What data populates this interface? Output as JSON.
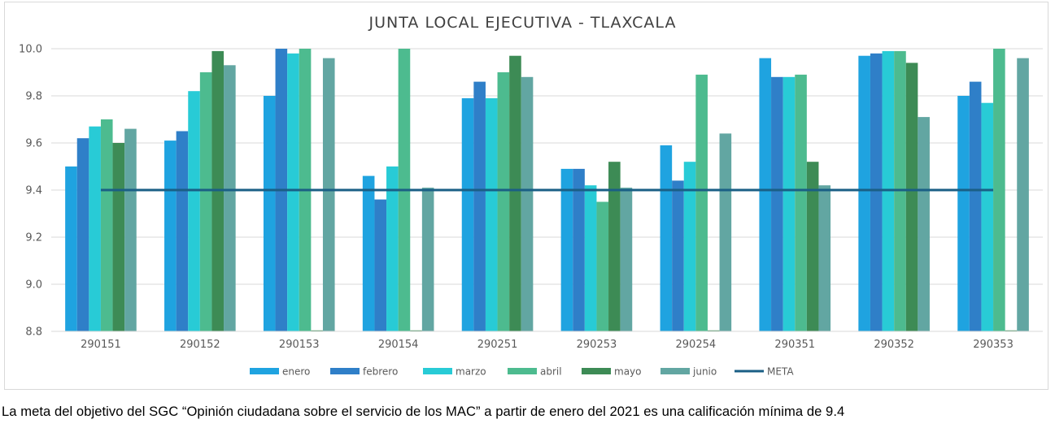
{
  "chart_data": {
    "type": "bar",
    "title": "JUNTA LOCAL EJECUTIVA - TLAXCALA",
    "categories": [
      "290151",
      "290152",
      "290153",
      "290154",
      "290251",
      "290253",
      "290254",
      "290351",
      "290352",
      "290353"
    ],
    "series": [
      {
        "name": "enero",
        "color": "#1fa3e0",
        "values": [
          9.5,
          9.61,
          9.8,
          9.46,
          9.79,
          9.49,
          9.59,
          9.96,
          9.97,
          9.8
        ]
      },
      {
        "name": "febrero",
        "color": "#2f7fc8",
        "values": [
          9.62,
          9.65,
          10.0,
          9.36,
          9.86,
          9.49,
          9.44,
          9.88,
          9.98,
          9.86
        ]
      },
      {
        "name": "marzo",
        "color": "#28cbd6",
        "values": [
          9.67,
          9.82,
          9.98,
          9.5,
          9.79,
          9.42,
          9.52,
          9.88,
          9.99,
          9.77
        ]
      },
      {
        "name": "abril",
        "color": "#4dbb8f",
        "values": [
          9.7,
          9.9,
          10.0,
          10.0,
          9.9,
          9.35,
          9.89,
          9.89,
          9.99,
          10.0
        ]
      },
      {
        "name": "mayo",
        "color": "#3d8b55",
        "values": [
          9.6,
          9.99,
          8.8,
          8.8,
          9.97,
          9.52,
          8.8,
          9.52,
          9.94,
          8.8
        ]
      },
      {
        "name": "junio",
        "color": "#62a6a2",
        "values": [
          9.66,
          9.93,
          9.96,
          9.41,
          9.88,
          9.41,
          9.64,
          9.42,
          9.71,
          9.96
        ]
      }
    ],
    "meta": {
      "name": "META",
      "value": 9.4,
      "color": "#1a5f85"
    },
    "ylim": [
      8.8,
      10.0
    ],
    "yticks": [
      "8.8",
      "9.0",
      "9.2",
      "9.4",
      "9.6",
      "9.8",
      "10.0"
    ],
    "ytick_values": [
      8.8,
      9.0,
      9.2,
      9.4,
      9.6,
      9.8,
      10.0
    ],
    "grid": true,
    "legend_position": "bottom"
  },
  "caption": "La meta del objetivo del SGC “Opinión ciudadana sobre el servicio de los MAC” a partir de enero del 2021 es una calificación mínima de 9.4"
}
